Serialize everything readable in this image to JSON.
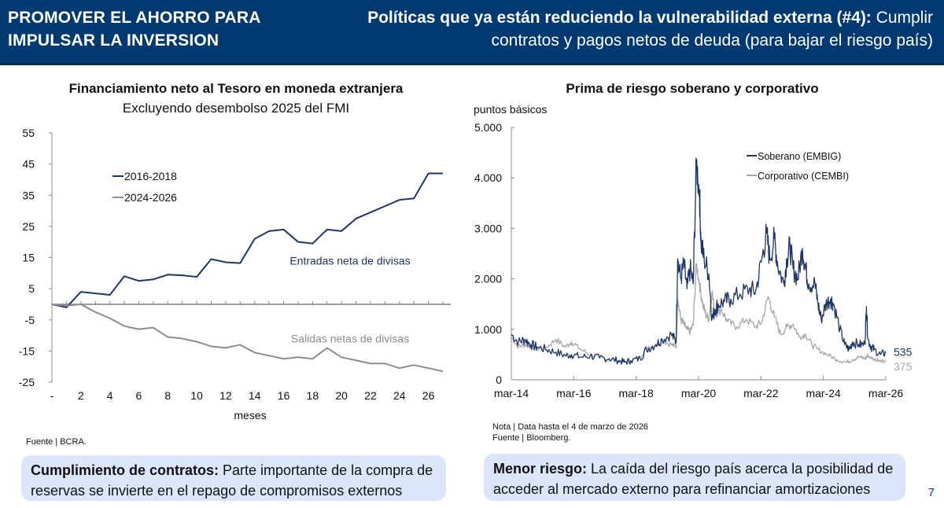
{
  "header": {
    "left_line1": "PROMOVER EL AHORRO PARA",
    "left_line2": "IMPULSAR LA INVERSION",
    "right_bold": "Políticas que ya están reduciendo la vulnerabilidad externa (#4):",
    "right_regular": " Cumplir contratos y pagos netos de deuda (para bajar el riesgo país)"
  },
  "colors": {
    "header_bg": "#003a70",
    "navy_series": "#1f3468",
    "gray_series": "#8c8c8c",
    "callout_bg": "#dde5fb"
  },
  "chart_data": [
    {
      "type": "line",
      "title": "Financiamiento neto al Tesoro en moneda extranjera",
      "subtitle": "Excluyendo desembolso 2025 del FMI",
      "xlabel": "meses",
      "ylabel": "",
      "x": [
        0,
        1,
        2,
        3,
        4,
        5,
        6,
        7,
        8,
        9,
        10,
        11,
        12,
        13,
        14,
        15,
        16,
        17,
        18,
        19,
        20,
        21,
        22,
        23,
        24,
        25,
        26,
        27
      ],
      "x_tick_labels": [
        "-",
        "2",
        "4",
        "6",
        "8",
        "10",
        "12",
        "14",
        "16",
        "18",
        "20",
        "22",
        "24",
        "26"
      ],
      "x_tick_values": [
        0,
        2,
        4,
        6,
        8,
        10,
        12,
        14,
        16,
        18,
        20,
        22,
        24,
        26
      ],
      "ylim": [
        -25,
        55
      ],
      "y_ticks": [
        55,
        45,
        35,
        25,
        15,
        5,
        -5,
        -15,
        -25
      ],
      "grid": false,
      "legend_position": "top-left",
      "series": [
        {
          "name": "2016-2018",
          "color": "#1f3468",
          "values": [
            0,
            -1,
            4,
            3.5,
            3,
            9,
            7.5,
            8,
            9.5,
            9.3,
            8.8,
            14.5,
            13.5,
            13.2,
            21,
            23.5,
            24,
            20,
            19.5,
            24,
            23.5,
            27.5,
            29.5,
            31.5,
            33.5,
            34,
            42,
            42
          ]
        },
        {
          "name": "2024-2026",
          "color": "#8c8c8c",
          "values": [
            0,
            -0.5,
            0,
            -2.5,
            -4.5,
            -7,
            -8,
            -7.5,
            -10.5,
            -11,
            -12,
            -13.5,
            -14,
            -13,
            -15.5,
            -16.5,
            -17.5,
            -17,
            -17.5,
            -14,
            -17,
            -18,
            -19,
            -19,
            -20.5,
            -19.5,
            -20.5,
            -21.5
          ]
        }
      ],
      "annotations": [
        {
          "text": "Entradas neta de divisas",
          "color": "#1f3468",
          "x": 17,
          "y": 14
        },
        {
          "text": "Salidas netas de divisas",
          "color": "#8c8c8c",
          "x": 17,
          "y": -11
        }
      ],
      "source": "Fuente | BCRA."
    },
    {
      "type": "line",
      "title": "Prima de riesgo soberano y corporativo",
      "ylabel": "puntos básicos",
      "xlabel": "",
      "x_tick_labels": [
        "mar-14",
        "mar-16",
        "mar-18",
        "mar-20",
        "mar-22",
        "mar-24",
        "mar-26"
      ],
      "x_range": [
        2014.17,
        2026.17
      ],
      "ylim": [
        0,
        5000
      ],
      "y_ticks": [
        0,
        1000,
        2000,
        3000,
        4000,
        5000
      ],
      "y_tick_labels": [
        "0",
        "1.000",
        "2.000",
        "3.000",
        "4.000",
        "5.000"
      ],
      "grid": false,
      "legend_position": "top-right",
      "series": [
        {
          "name": "Soberano (EMBIG)",
          "color": "#1f3468",
          "last_label": "535",
          "x": [
            2014.17,
            2014.4,
            2014.6,
            2014.8,
            2015.0,
            2015.3,
            2015.6,
            2015.9,
            2016.1,
            2016.4,
            2016.7,
            2017.0,
            2017.3,
            2017.6,
            2017.8,
            2018.0,
            2018.3,
            2018.5,
            2018.8,
            2019.0,
            2019.3,
            2019.45,
            2019.5,
            2019.6,
            2019.7,
            2019.8,
            2019.9,
            2020.0,
            2020.1,
            2020.2,
            2020.25,
            2020.35,
            2020.5,
            2020.6,
            2020.7,
            2020.8,
            2021.0,
            2021.2,
            2021.5,
            2021.8,
            2022.0,
            2022.2,
            2022.35,
            2022.45,
            2022.6,
            2022.7,
            2022.9,
            2023.0,
            2023.1,
            2023.2,
            2023.35,
            2023.5,
            2023.6,
            2023.7,
            2023.9,
            2024.0,
            2024.1,
            2024.25,
            2024.4,
            2024.5,
            2024.7,
            2024.85,
            2025.0,
            2025.1,
            2025.3,
            2025.5,
            2025.55,
            2025.6,
            2025.7,
            2025.8,
            2026.0,
            2026.17
          ],
          "values": [
            900,
            750,
            800,
            700,
            650,
            600,
            550,
            480,
            500,
            450,
            470,
            430,
            420,
            380,
            350,
            380,
            420,
            600,
            700,
            800,
            900,
            750,
            2400,
            2000,
            2300,
            1800,
            2200,
            1900,
            4300,
            3700,
            2700,
            2400,
            2100,
            1200,
            1400,
            1500,
            1550,
            1600,
            1700,
            1800,
            1750,
            2400,
            2900,
            2400,
            2800,
            2300,
            1900,
            2400,
            2650,
            2200,
            2000,
            2600,
            2200,
            1900,
            1900,
            1500,
            1200,
            1500,
            1600,
            1500,
            1000,
            700,
            600,
            750,
            700,
            700,
            1450,
            800,
            650,
            600,
            500,
            535
          ]
        },
        {
          "name": "Corporativo (CEMBI)",
          "color": "#a6a6a6",
          "last_label": "375",
          "x": [
            2014.17,
            2014.4,
            2014.6,
            2014.8,
            2015.0,
            2015.3,
            2015.6,
            2015.9,
            2016.1,
            2016.4,
            2016.7,
            2017.0,
            2017.3,
            2017.6,
            2017.8,
            2018.0,
            2018.3,
            2018.5,
            2018.8,
            2019.0,
            2019.3,
            2019.45,
            2019.5,
            2019.6,
            2019.7,
            2019.8,
            2019.9,
            2020.0,
            2020.1,
            2020.2,
            2020.3,
            2020.4,
            2020.5,
            2020.6,
            2020.7,
            2020.9,
            2021.1,
            2021.4,
            2021.7,
            2022.0,
            2022.2,
            2022.4,
            2022.6,
            2022.8,
            2023.0,
            2023.2,
            2023.4,
            2023.6,
            2023.8,
            2024.0,
            2024.3,
            2024.6,
            2024.9,
            2025.1,
            2025.3,
            2025.5,
            2025.6,
            2025.8,
            2026.0,
            2026.17
          ],
          "values": [
            850,
            650,
            700,
            650,
            600,
            650,
            800,
            650,
            750,
            600,
            500,
            450,
            400,
            370,
            350,
            380,
            450,
            650,
            700,
            780,
            700,
            650,
            1600,
            1200,
            1100,
            1000,
            950,
            1100,
            2300,
            1900,
            1500,
            1300,
            1200,
            1750,
            1300,
            1400,
            1150,
            1050,
            1200,
            1050,
            1150,
            1650,
            1250,
            900,
            1050,
            1100,
            850,
            900,
            700,
            600,
            500,
            400,
            350,
            400,
            450,
            420,
            480,
            400,
            390,
            375
          ]
        }
      ],
      "note": "Nota | Data hasta el 4 de marzo de 2026",
      "source": "Fuente | Bloomberg."
    }
  ],
  "callouts": [
    {
      "bold": "Cumplimiento de contratos:",
      "text": " Parte importante de la compra de reservas se invierte en el repago de compromisos externos"
    },
    {
      "bold": "Menor riesgo:",
      "text": " La caída del riesgo país acerca la posibilidad de acceder al mercado externo para refinanciar amortizaciones"
    }
  ],
  "page_number": "7"
}
